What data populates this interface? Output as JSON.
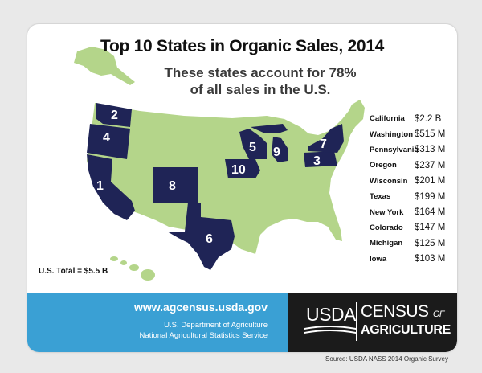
{
  "title": "Top 10 States in Organic Sales, 2014",
  "subtitle_line1": "These states account for 78%",
  "subtitle_line2": "of all sales in the U.S.",
  "colors": {
    "highlight": "#1f2456",
    "base": "#b4d58a",
    "footer_blue": "#3aa0d4",
    "footer_black": "#1b1b1b"
  },
  "states": [
    {
      "rank": "1",
      "label": "1",
      "name": "California",
      "value": "$2.2 B"
    },
    {
      "rank": "2",
      "label": "2",
      "name": "Washington",
      "value": "$515 M"
    },
    {
      "rank": "3",
      "label": "3",
      "name": "Pennsylvania",
      "value": "$313 M"
    },
    {
      "rank": "4",
      "label": "4",
      "name": "Oregon",
      "value": "$237 M"
    },
    {
      "rank": "5",
      "label": "5",
      "name": "Wisconsin",
      "value": "$201 M"
    },
    {
      "rank": "6",
      "label": "6",
      "name": "Texas",
      "value": "$199 M"
    },
    {
      "rank": "7",
      "label": "7",
      "name": "New York",
      "value": "$164 M"
    },
    {
      "rank": "8",
      "label": "8",
      "name": "Colorado",
      "value": "$147 M"
    },
    {
      "rank": "9",
      "label": "9",
      "name": "Michigan",
      "value": "$125 M"
    },
    {
      "rank": "10",
      "label": "10",
      "name": "Iowa",
      "value": "$103 M"
    }
  ],
  "total": "U.S. Total = $5.5 B",
  "footer": {
    "url": "www.agcensus.usda.gov",
    "dept_line1": "U.S. Department of Agriculture",
    "dept_line2": "National Agricultural Statistics Service",
    "logo_usda": "USDA",
    "logo_census": "CENSUS",
    "logo_of": "OF",
    "logo_agriculture": "AGRICULTURE"
  },
  "source": "Source: USDA NASS 2014 Organic Survey"
}
